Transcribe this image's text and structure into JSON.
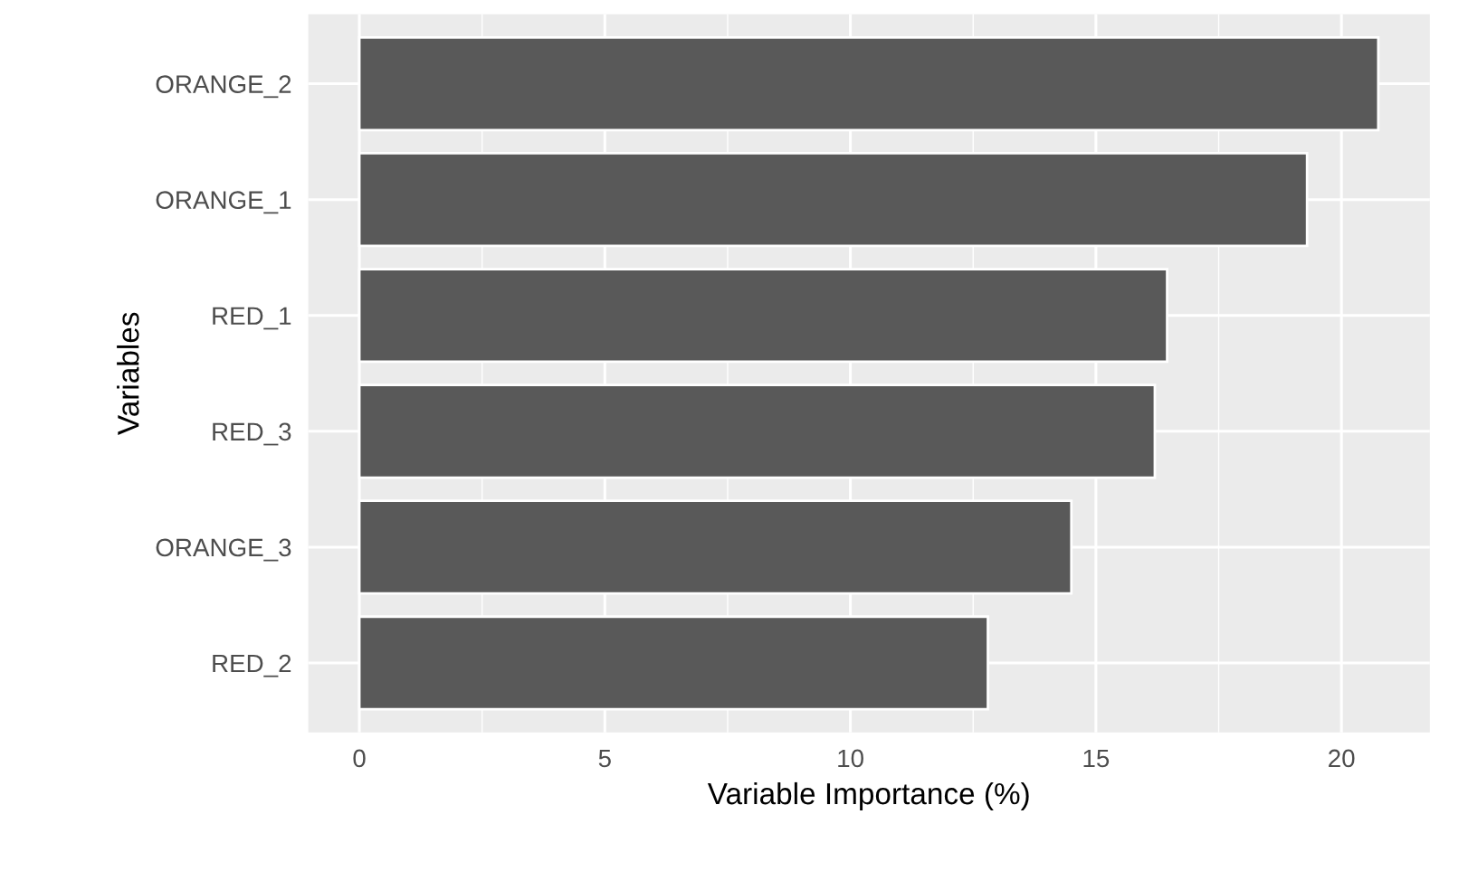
{
  "chart_data": {
    "type": "bar",
    "orientation": "horizontal",
    "xlabel": "Variable Importance (%)",
    "ylabel": "Variables",
    "categories": [
      "ORANGE_2",
      "ORANGE_1",
      "RED_1",
      "RED_3",
      "ORANGE_3",
      "RED_2"
    ],
    "values": [
      20.75,
      19.3,
      16.45,
      16.2,
      14.5,
      12.8
    ],
    "color": "#595959",
    "xlim": [
      -1.04,
      21.8
    ],
    "xticks": [
      0,
      5,
      10,
      15,
      20
    ],
    "grid": true
  }
}
